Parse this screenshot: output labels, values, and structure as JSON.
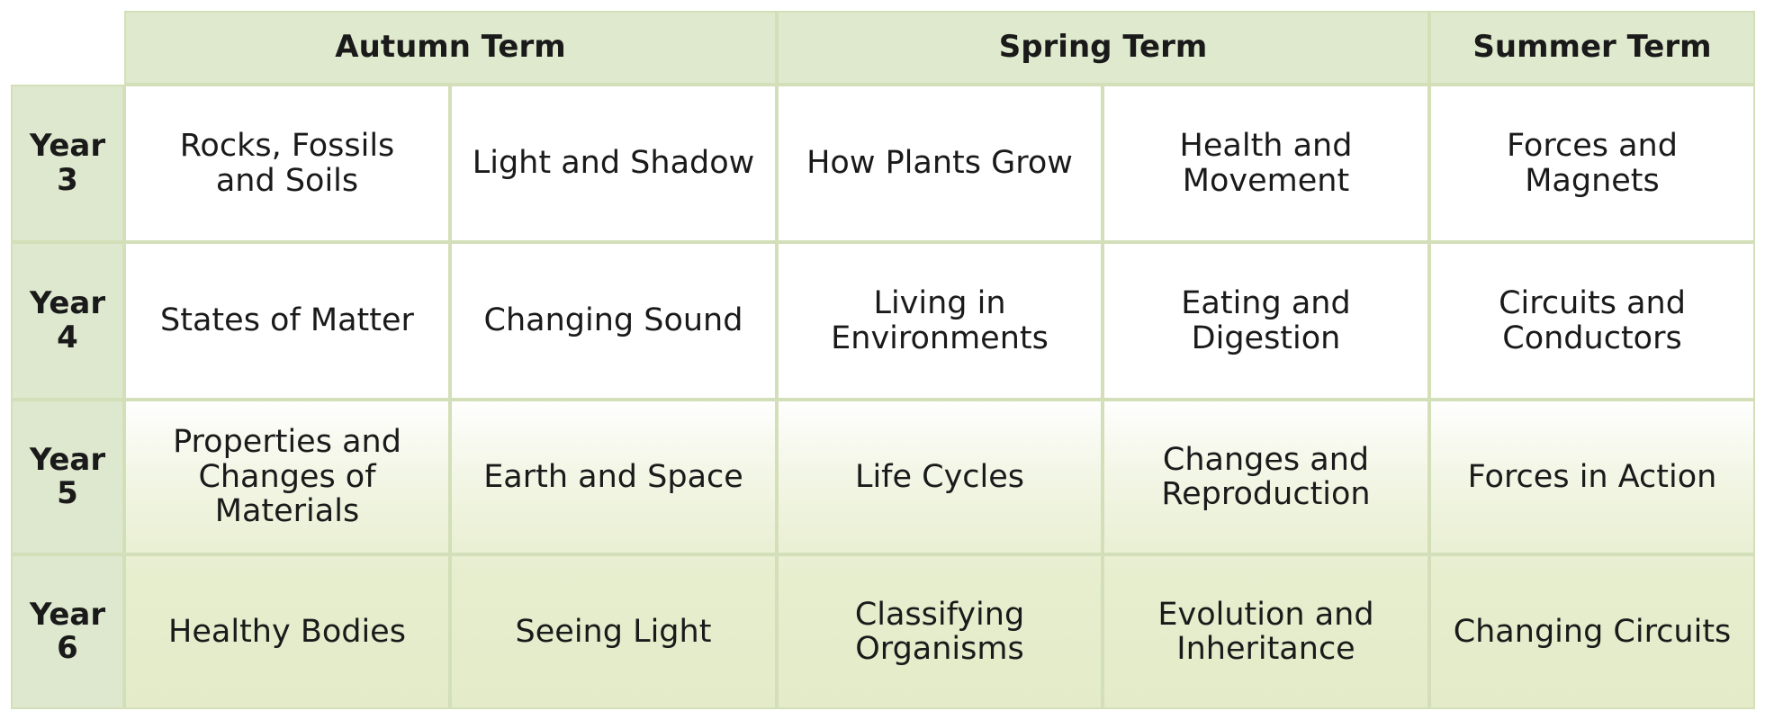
{
  "header": {
    "terms": [
      "Autumn Term",
      "Spring Term",
      "Summer Term"
    ]
  },
  "table": {
    "rows": [
      {
        "label": "Year\n3",
        "cells": [
          "Rocks, Fossils\nand Soils",
          "Light and Shadow",
          "How Plants Grow",
          "Health and\nMovement",
          "Forces and\nMagnets"
        ]
      },
      {
        "label": "Year\n4",
        "cells": [
          "States of Matter",
          "Changing Sound",
          "Living in\nEnvironments",
          "Eating and\nDigestion",
          "Circuits and\nConductors"
        ]
      },
      {
        "label": "Year\n5",
        "cells": [
          "Properties and\nChanges of\nMaterials",
          "Earth and Space",
          "Life Cycles",
          "Changes and\nReproduction",
          "Forces in Action"
        ]
      },
      {
        "label": "Year\n6",
        "cells": [
          "Healthy Bodies",
          "Seeing Light",
          "Classifying\nOrganisms",
          "Evolution and\nInheritance",
          "Changing Circuits"
        ]
      }
    ]
  }
}
